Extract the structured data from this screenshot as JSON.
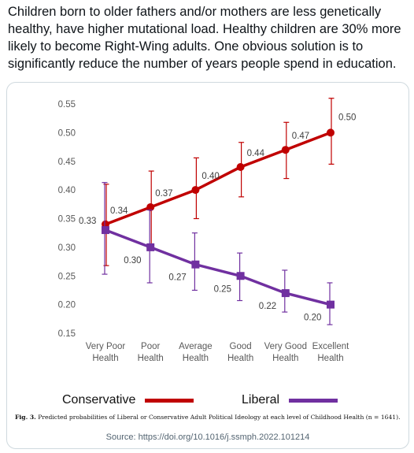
{
  "post": {
    "text": "Children born to older fathers and/or mothers are less genetically healthy, have higher mutational load. Healthy children are 30% more likely to become Right-Wing adults. One obvious solution is to significantly reduce the number of years people spend in education."
  },
  "chart_data": {
    "type": "line",
    "categories": [
      [
        "Very Poor",
        "Health"
      ],
      [
        "Poor",
        "Health"
      ],
      [
        "Average",
        "Health"
      ],
      [
        "Good",
        "Health"
      ],
      [
        "Very Good",
        "Health"
      ],
      [
        "Excellent",
        "Health"
      ]
    ],
    "ylim": [
      0.15,
      0.55
    ],
    "yticks": [
      "0.15",
      "0.20",
      "0.25",
      "0.30",
      "0.35",
      "0.40",
      "0.45",
      "0.50",
      "0.55"
    ],
    "grid": false,
    "legend_position": "bottom",
    "series": [
      {
        "name": "Conservative",
        "color": "#c00000",
        "marker": "circle",
        "values": [
          0.34,
          0.37,
          0.4,
          0.44,
          0.47,
          0.5
        ],
        "labels": [
          "0.34",
          "0.37",
          "0.40",
          "0.44",
          "0.47",
          "0.50"
        ],
        "error_low": [
          0.268,
          0.305,
          0.35,
          0.388,
          0.42,
          0.445
        ],
        "error_high": [
          0.41,
          0.433,
          0.456,
          0.483,
          0.518,
          0.56
        ]
      },
      {
        "name": "Liberal",
        "color": "#7030a0",
        "marker": "square",
        "values": [
          0.33,
          0.3,
          0.27,
          0.25,
          0.22,
          0.2
        ],
        "labels": [
          "0.33",
          "0.30",
          "0.27",
          "0.25",
          "0.22",
          "0.20"
        ],
        "error_low": [
          0.253,
          0.238,
          0.225,
          0.207,
          0.187,
          0.165
        ],
        "error_high": [
          0.413,
          0.365,
          0.325,
          0.29,
          0.26,
          0.238
        ]
      }
    ]
  },
  "legend": {
    "conservative_label": "Conservative",
    "liberal_label": "Liberal"
  },
  "caption": {
    "prefix": "Fig. 3.",
    "text": "Predicted probabilities of Liberal or Conservative Adult Political Ideology at each level of Childhood Health (n = 1641)."
  },
  "source": {
    "text": "Source: https://doi.org/10.1016/j.ssmph.2022.101214"
  }
}
